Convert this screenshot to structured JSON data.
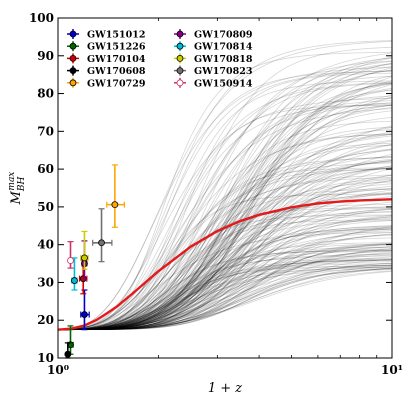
{
  "chart_data": {
    "type": "line",
    "title": "",
    "xlabel": "1 + z",
    "ylabel_main": "M",
    "ylabel_sub": "BH",
    "ylabel_sup": "max",
    "xscale": "log",
    "xlim": [
      1,
      10
    ],
    "ylim": [
      10,
      100
    ],
    "x_ticks": [
      1,
      10
    ],
    "x_tick_labels": [
      "10⁰",
      "10¹"
    ],
    "y_ticks": [
      10,
      20,
      30,
      40,
      50,
      60,
      70,
      80,
      90,
      100
    ],
    "y_tick_labels": [
      "10",
      "20",
      "30",
      "40",
      "50",
      "60",
      "70",
      "80",
      "90",
      "100"
    ],
    "grid": false,
    "legend_position": "top-left",
    "model_curves": {
      "description_color": "#000000",
      "asymptote_range": [
        34,
        95
      ],
      "low_z_value": 17.5,
      "count": 200
    },
    "median_curve": {
      "color": "#e31a1c",
      "x": [
        1.0,
        1.1,
        1.2,
        1.3,
        1.4,
        1.5,
        1.7,
        2.0,
        2.5,
        3.0,
        3.5,
        4.0,
        5.0,
        6.0,
        7.0,
        8.0,
        10.0
      ],
      "y": [
        17.5,
        17.8,
        18.6,
        20.0,
        21.8,
        23.6,
        27.6,
        33.0,
        39.5,
        43.6,
        46.2,
        47.9,
        49.9,
        50.9,
        51.4,
        51.7,
        52.0
      ]
    },
    "series": [
      {
        "name": "GW151012",
        "color": "#0000cc",
        "x": 1.2,
        "xerr": [
          0.03,
          0.04
        ],
        "y": 21.5,
        "yerr": [
          4.0,
          6.5
        ]
      },
      {
        "name": "GW151226",
        "color": "#006400",
        "x": 1.09,
        "xerr": [
          0.02,
          0.02
        ],
        "y": 13.5,
        "yerr": [
          2.5,
          5.0
        ]
      },
      {
        "name": "GW170104",
        "color": "#cc0000",
        "x": 1.19,
        "xerr": [
          0.03,
          0.03
        ],
        "y": 31.0,
        "yerr": [
          4.0,
          5.0
        ]
      },
      {
        "name": "GW170608",
        "color": "#000000",
        "x": 1.07,
        "xerr": [
          0.01,
          0.01
        ],
        "y": 11.0,
        "yerr": [
          1.0,
          3.0
        ]
      },
      {
        "name": "GW170729",
        "color": "#ffa500",
        "x": 1.48,
        "xerr": [
          0.08,
          0.1
        ],
        "y": 50.6,
        "yerr": [
          6.0,
          10.5
        ]
      },
      {
        "name": "GW170809",
        "color": "#800080",
        "x": 1.2,
        "xerr": [
          0.02,
          0.02
        ],
        "y": 35.0,
        "yerr": [
          4.0,
          6.0
        ]
      },
      {
        "name": "GW170814",
        "color": "#00bcd4",
        "x": 1.12,
        "xerr": [
          0.02,
          0.02
        ],
        "y": 30.5,
        "yerr": [
          2.5,
          6.0
        ]
      },
      {
        "name": "GW170818",
        "color": "#cccc00",
        "x": 1.2,
        "xerr": [
          0.03,
          0.03
        ],
        "y": 36.5,
        "yerr": [
          3.0,
          7.0
        ]
      },
      {
        "name": "GW170823",
        "color": "#707070",
        "x": 1.35,
        "xerr": [
          0.08,
          0.1
        ],
        "y": 40.5,
        "yerr": [
          5.0,
          9.0
        ]
      },
      {
        "name": "GW150914",
        "color": "#cc3366",
        "x": 1.09,
        "xerr": [
          0.01,
          0.01
        ],
        "y": 35.8,
        "yerr": [
          2.0,
          5.0
        ],
        "hollow": true
      }
    ]
  }
}
